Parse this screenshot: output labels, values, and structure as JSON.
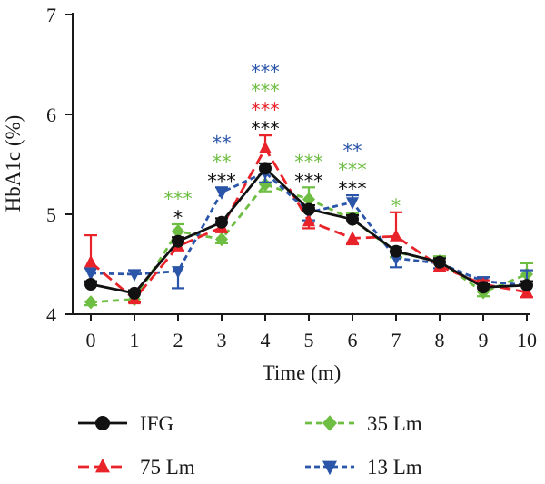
{
  "chart_data": {
    "type": "line",
    "xlabel": "Time (m)",
    "ylabel": "HbA1c (%)",
    "xlim": [
      0,
      10
    ],
    "ylim": [
      4,
      7
    ],
    "x": [
      0,
      1,
      2,
      3,
      4,
      5,
      6,
      7,
      8,
      9,
      10
    ],
    "x_ticks": [
      "0",
      "1",
      "2",
      "3",
      "4",
      "5",
      "6",
      "7",
      "8",
      "9",
      "10"
    ],
    "y_ticks": [
      "4",
      "5",
      "6",
      "7"
    ],
    "series": [
      {
        "name": "IFG",
        "color": "#111111",
        "marker": "circle",
        "dash": "solid",
        "values": [
          4.3,
          4.21,
          4.73,
          4.92,
          5.46,
          5.05,
          4.95,
          4.63,
          4.52,
          4.27,
          4.29
        ],
        "err": [
          0.03,
          0.03,
          0.04,
          0.04,
          0.05,
          0.04,
          0.04,
          0.04,
          0.04,
          0.03,
          0.04
        ]
      },
      {
        "name": "75 Lm",
        "color": "#e8232a",
        "marker": "triangle-up",
        "dash": "long",
        "values": [
          4.52,
          4.15,
          4.68,
          4.87,
          5.66,
          4.93,
          4.76,
          4.78,
          4.48,
          4.3,
          4.22
        ],
        "err": [
          0.27,
          0.03,
          0.04,
          0.05,
          0.13,
          0.07,
          0.06,
          0.24,
          0.05,
          0.04,
          0.05
        ]
      },
      {
        "name": "35 Lm",
        "color": "#6fbe44",
        "marker": "diamond",
        "dash": "dashed",
        "values": [
          4.12,
          4.15,
          4.83,
          4.75,
          5.3,
          5.15,
          4.95,
          4.62,
          4.53,
          4.22,
          4.4
        ],
        "err": [
          0.03,
          0.03,
          0.07,
          0.04,
          0.07,
          0.12,
          0.06,
          0.05,
          0.05,
          0.04,
          0.11
        ]
      },
      {
        "name": "13 Lm",
        "color": "#2a55a8",
        "marker": "triangle-down",
        "dash": "short",
        "values": [
          4.41,
          4.4,
          4.43,
          5.22,
          5.42,
          5.02,
          5.12,
          4.56,
          4.51,
          4.33,
          4.29
        ],
        "err": [
          0.05,
          0.04,
          0.17,
          0.05,
          0.1,
          0.08,
          0.07,
          0.09,
          0.05,
          0.04,
          0.15
        ]
      }
    ],
    "significance": [
      {
        "x": 2,
        "rows": [
          {
            "text": "*",
            "color": "#111111"
          },
          {
            "text": "***",
            "color": "#6fbe44"
          }
        ]
      },
      {
        "x": 3,
        "rows": [
          {
            "text": "***",
            "color": "#111111"
          },
          {
            "text": "**",
            "color": "#6fbe44"
          },
          {
            "text": "**",
            "color": "#2a55a8"
          }
        ]
      },
      {
        "x": 4,
        "rows": [
          {
            "text": "***",
            "color": "#111111"
          },
          {
            "text": "***",
            "color": "#e8232a"
          },
          {
            "text": "***",
            "color": "#6fbe44"
          },
          {
            "text": "***",
            "color": "#2a55a8"
          }
        ]
      },
      {
        "x": 5,
        "rows": [
          {
            "text": "***",
            "color": "#111111"
          },
          {
            "text": "***",
            "color": "#6fbe44"
          }
        ]
      },
      {
        "x": 6,
        "rows": [
          {
            "text": "***",
            "color": "#111111"
          },
          {
            "text": "***",
            "color": "#6fbe44"
          },
          {
            "text": "**",
            "color": "#2a55a8"
          }
        ]
      },
      {
        "x": 7,
        "rows": [
          {
            "text": "*",
            "color": "#6fbe44"
          }
        ]
      }
    ],
    "legend_placement": "bottom",
    "grid": false
  }
}
